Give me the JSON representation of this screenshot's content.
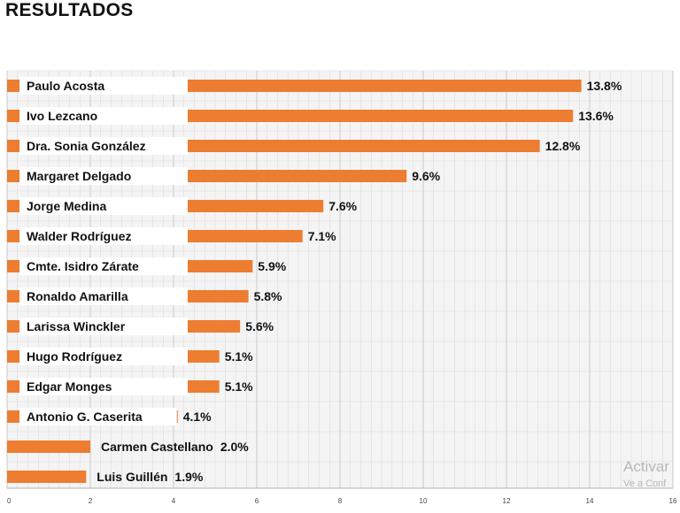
{
  "title": "RESULTADOS",
  "watermark": {
    "line1": "Activar",
    "line2": "Ve a Conf"
  },
  "colors": {
    "bar": "#ED7D31",
    "grid": "#d9d9d9",
    "plot_bg": "#f4f4f4",
    "label_bg": "#ffffff"
  },
  "chart_data": {
    "type": "bar",
    "orientation": "horizontal",
    "title": "RESULTADOS",
    "xlabel": "",
    "ylabel": "",
    "xlim": [
      0,
      16
    ],
    "xticks": [
      0,
      2,
      4,
      6,
      8,
      10,
      12,
      14,
      16
    ],
    "grid": true,
    "categories": [
      "Paulo Acosta",
      "Ivo Lezcano",
      "Dra. Sonia González",
      "Margaret Delgado",
      "Jorge Medina",
      "Walder Rodríguez",
      "Cmte. Isidro Zárate",
      "Ronaldo Amarilla",
      "Larissa Winckler",
      "Hugo Rodríguez",
      "Edgar Monges",
      "Antonio G. Caserita",
      "Carmen Castellano",
      "Luis Guillén"
    ],
    "values": [
      13.8,
      13.6,
      12.8,
      9.6,
      7.6,
      7.1,
      5.9,
      5.8,
      5.6,
      5.1,
      5.1,
      4.1,
      2.0,
      1.9
    ],
    "data_labels": [
      "13.8%",
      "13.6%",
      "12.8%",
      "9.6%",
      "7.6%",
      "7.1%",
      "5.9%",
      "5.8%",
      "5.6%",
      "5.1%",
      "5.1%",
      "4.1%",
      "2.0%",
      "1.9%"
    ]
  }
}
